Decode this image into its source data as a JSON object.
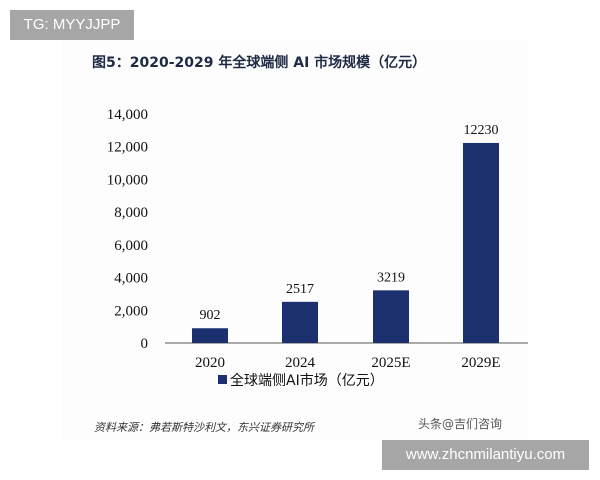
{
  "overlays": {
    "top_tag": "TG: MYYJJPP",
    "bottom_tag": "www.zhcnmilantiyu.com",
    "watermark": "头条@吉们咨询"
  },
  "source": "资料来源：弗若斯特沙利文，东兴证券研究所",
  "chart_data": {
    "type": "bar",
    "title": "图5：2020-2029 年全球端侧 AI 市场规模（亿元）",
    "categories": [
      "2020",
      "2024",
      "2025E",
      "2029E"
    ],
    "series": [
      {
        "name": "全球端侧AI市场（亿元）",
        "values": [
          902,
          2517,
          3219,
          12230
        ],
        "color": "#1c2f6e"
      }
    ],
    "data_labels": [
      "902",
      "2517",
      "3219",
      "12230"
    ],
    "ylim": [
      0,
      14000
    ],
    "yticks": [
      0,
      2000,
      4000,
      6000,
      8000,
      10000,
      12000,
      14000
    ],
    "ytick_labels": [
      "0",
      "2,000",
      "4,000",
      "6,000",
      "8,000",
      "10,000",
      "12,000",
      "14,000"
    ],
    "xlabel": "",
    "ylabel": "",
    "grid": false,
    "legend": "bottom"
  }
}
